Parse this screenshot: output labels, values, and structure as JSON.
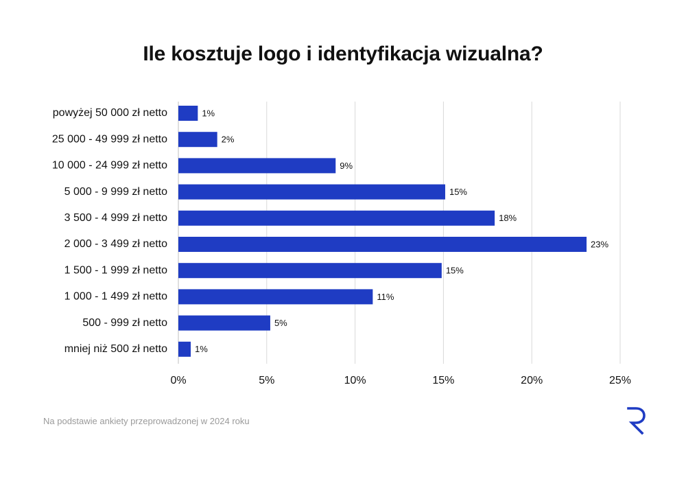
{
  "colors": {
    "bar": "#1f3cc3",
    "grid": "#d9d9d9",
    "text": "#111111",
    "note": "#9a9a9a",
    "logo": "#1f3cc3"
  },
  "logo_icon": "r-brand-icon",
  "footer": {
    "note": "Na podstawie ankiety przeprowadzonej w 2024 roku"
  },
  "chart_data": {
    "type": "bar",
    "orientation": "horizontal",
    "title": "Ile kosztuje logo i identyfikacja wizualna?",
    "xlabel": "",
    "ylabel": "",
    "xlim": [
      0,
      25
    ],
    "xticks": [
      0,
      5,
      10,
      15,
      20,
      25
    ],
    "xtick_labels": [
      "0%",
      "5%",
      "10%",
      "15%",
      "20%",
      "25%"
    ],
    "grid": "vertical",
    "legend": "none",
    "categories": [
      "powyżej 50 000 zł netto",
      "25 000 - 49 999 zł netto",
      "10 000 - 24 999 zł netto",
      "5 000 - 9 999 zł netto",
      "3 500 - 4 999 zł netto",
      "2 000 - 3 499 zł netto",
      "1 500 - 1 999 zł netto",
      "1 000 - 1 499 zł netto",
      "500 - 999 zł netto",
      "mniej niż 500 zł netto"
    ],
    "values": [
      1.1,
      2.2,
      8.9,
      15.1,
      17.9,
      23.1,
      14.9,
      11.0,
      5.2,
      0.7
    ],
    "value_labels": [
      "1%",
      "2%",
      "9%",
      "15%",
      "18%",
      "23%",
      "15%",
      "11%",
      "5%",
      "1%"
    ]
  }
}
